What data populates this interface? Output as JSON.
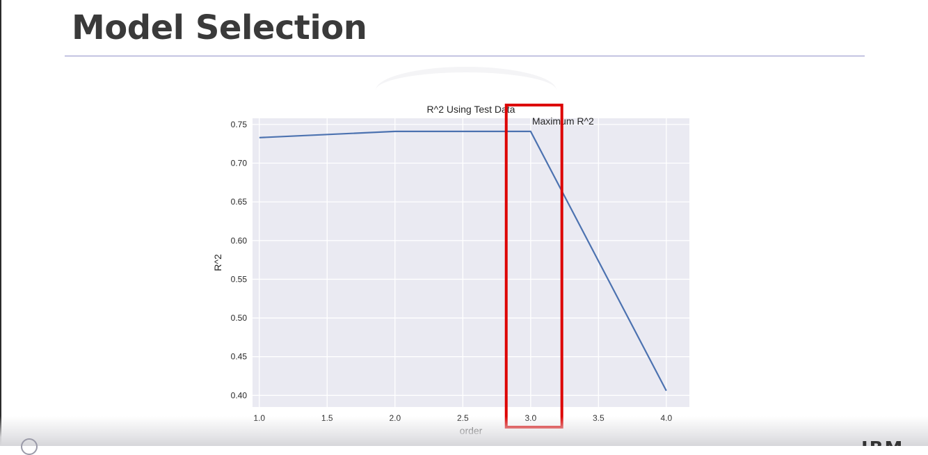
{
  "slide": {
    "title": "Model Selection"
  },
  "footer": {
    "logo_text": "IBM",
    "badge_icon": "seal-icon"
  },
  "colors": {
    "line": "#4c72b0",
    "highlight": "#dd0000",
    "plot_bg": "#eaeaf2",
    "grid": "#ffffff"
  },
  "chart_data": {
    "type": "line",
    "title": "R^2 Using Test Data",
    "xlabel": "order",
    "ylabel": "R^2",
    "x": [
      1.0,
      2.0,
      3.0,
      4.0
    ],
    "series": [
      {
        "values": [
          0.733,
          0.741,
          0.741,
          0.406
        ]
      }
    ],
    "xlim": [
      0.95,
      4.17
    ],
    "ylim": [
      0.385,
      0.758
    ],
    "xticks": [
      1.0,
      1.5,
      2.0,
      2.5,
      3.0,
      3.5,
      4.0
    ],
    "xtick_labels": [
      "1.0",
      "1.5",
      "2.0",
      "2.5",
      "3.0",
      "3.5",
      "4.0"
    ],
    "yticks": [
      0.4,
      0.45,
      0.5,
      0.55,
      0.6,
      0.65,
      0.7,
      0.75
    ],
    "ytick_labels": [
      "0.40",
      "0.45",
      "0.50",
      "0.55",
      "0.60",
      "0.65",
      "0.70",
      "0.75"
    ],
    "grid": true,
    "annotation": {
      "text": "Maximum R^2",
      "x": 3.0,
      "y": 0.741
    },
    "highlight_x_range": [
      2.82,
      3.23
    ]
  }
}
